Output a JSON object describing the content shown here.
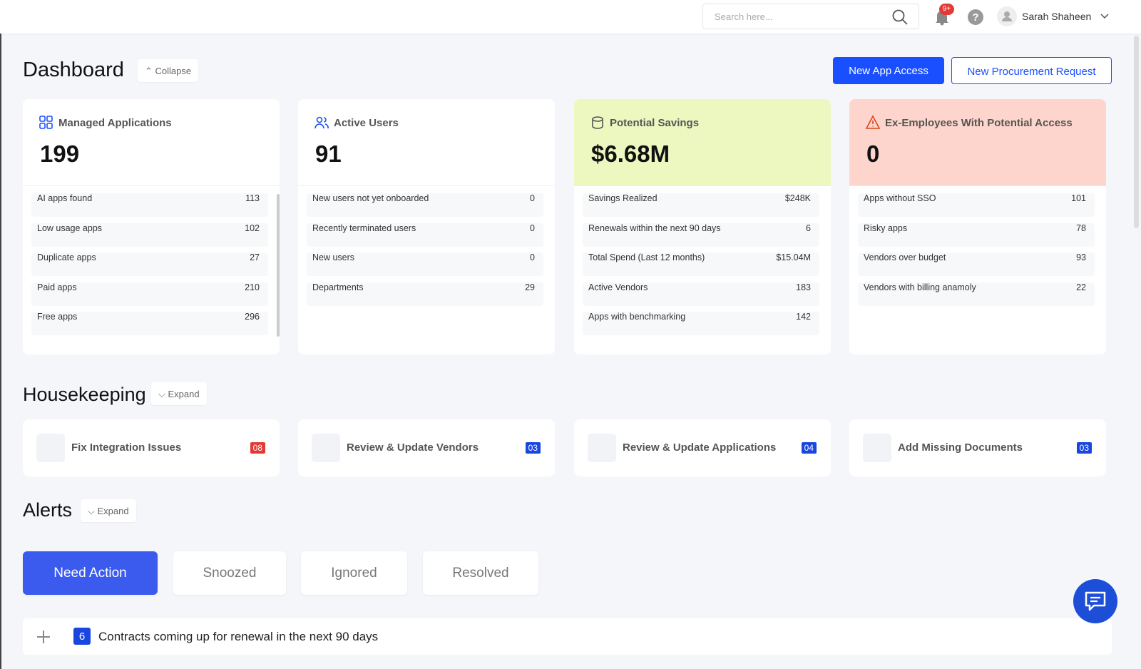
{
  "header": {
    "search_placeholder": "Search here...",
    "notification_badge": "9+",
    "user_name": "Sarah Shaheen"
  },
  "dashboard": {
    "title": "Dashboard",
    "toggle": "Collapse",
    "buttons": [
      "New App Access",
      "New Procurement Request"
    ],
    "cards": [
      {
        "title": "Managed Applications",
        "value": "199",
        "rows": [
          [
            "AI apps found",
            "113"
          ],
          [
            "Low usage apps",
            "102"
          ],
          [
            "Duplicate apps",
            "27"
          ],
          [
            "Paid apps",
            "210"
          ],
          [
            "Free apps",
            "296"
          ]
        ]
      },
      {
        "title": "Active Users",
        "value": "91",
        "rows": [
          [
            "New users not yet onboarded",
            "0"
          ],
          [
            "Recently terminated users",
            "0"
          ],
          [
            "New users",
            "0"
          ],
          [
            "Departments",
            "29"
          ]
        ]
      },
      {
        "title": "Potential Savings",
        "value": "$6.68M",
        "rows": [
          [
            "Savings Realized",
            "$248K"
          ],
          [
            "Renewals within the next 90 days",
            "6"
          ],
          [
            "Total Spend (Last 12 months)",
            "$15.04M"
          ],
          [
            "Active Vendors",
            "183"
          ],
          [
            "Apps with benchmarking",
            "142"
          ]
        ]
      },
      {
        "title": "Ex-Employees With Potential Access",
        "value": "0",
        "rows": [
          [
            "Apps without SSO",
            "101"
          ],
          [
            "Risky apps",
            "78"
          ],
          [
            "Vendors over budget",
            "93"
          ],
          [
            "Vendors with billing anamoly",
            "22"
          ]
        ]
      }
    ]
  },
  "housekeeping": {
    "title": "Housekeeping",
    "toggle": "Expand",
    "items": [
      {
        "label": "Fix Integration Issues",
        "count": "08"
      },
      {
        "label": "Review & Update Vendors",
        "count": "03"
      },
      {
        "label": "Review & Update Applications",
        "count": "04"
      },
      {
        "label": "Add Missing Documents",
        "count": "03"
      }
    ]
  },
  "alerts": {
    "title": "Alerts",
    "toggle": "Expand",
    "tabs": [
      "Need Action",
      "Snoozed",
      "Ignored",
      "Resolved"
    ],
    "items": [
      {
        "count": "6",
        "text": "Contracts coming up for renewal in the next 90 days"
      }
    ]
  }
}
